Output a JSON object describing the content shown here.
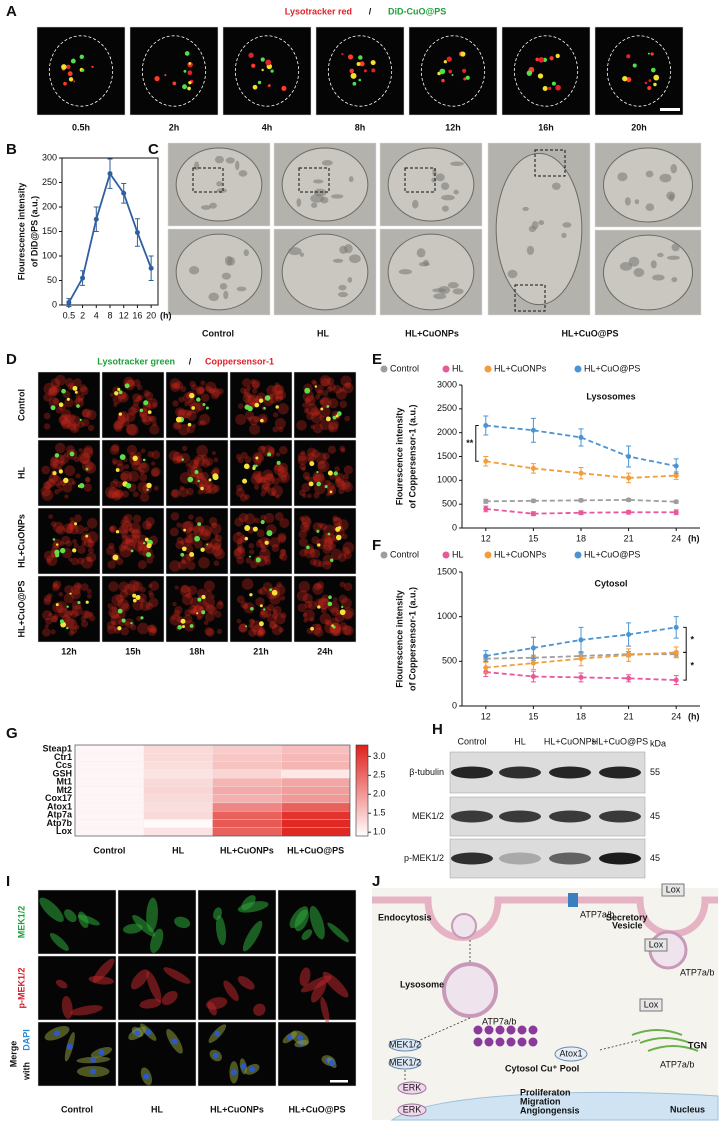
{
  "panel_labels": [
    "A",
    "B",
    "C",
    "D",
    "E",
    "F",
    "G",
    "H",
    "I",
    "J"
  ],
  "panel_a": {
    "title_left": "Lysotracker red",
    "separator": "/",
    "title_right": "DiD-CuO@PS",
    "times": [
      "0.5h",
      "2h",
      "4h",
      "8h",
      "12h",
      "16h",
      "20h"
    ]
  },
  "panel_c": {
    "groups": [
      "Control",
      "HL",
      "HL+CuONPs",
      "HL+CuO@PS"
    ]
  },
  "panel_d": {
    "title_left": "Lysotracker green",
    "separator": "/",
    "title_right": "Coppersensor-1",
    "rows": [
      "Control",
      "HL",
      "HL+CuONPs",
      "HL+CuO@PS"
    ],
    "times": [
      "12h",
      "15h",
      "18h",
      "21h",
      "24h"
    ]
  },
  "panel_h": {
    "columns": [
      "Control",
      "HL",
      "HL+CuONPs",
      "HL+CuO@PS"
    ],
    "rows": [
      "β-tubulin",
      "MEK1/2",
      "p-MEK1/2"
    ],
    "unit": "kDa",
    "sizes": [
      "55",
      "45",
      "45"
    ]
  },
  "panel_i": {
    "rows": [
      "MEK1/2",
      "p-MEK1/2"
    ],
    "merge": [
      "Merge",
      "with",
      "DAPI"
    ],
    "columns": [
      "Control",
      "HL",
      "HL+CuONPs",
      "HL+CuO@PS"
    ]
  },
  "panel_j": {
    "endocytosis": "Endocytosis",
    "atp7ab": "ATP7a/b",
    "lox": "Lox",
    "secretory_vesicle": [
      "Secretory",
      "Vesicle"
    ],
    "lysosome": "Lysosome",
    "mek": "MEK1/2",
    "cytosol_pool": "Cytosol Cu⁺ Pool",
    "atox1": "Atox1",
    "tgn": "TGN",
    "erk": "ERK",
    "outcomes": [
      "Proliferaton",
      "Migration",
      "Angiongensis"
    ],
    "nucleus": "Nucleus"
  },
  "chart_data": [
    {
      "type": "line",
      "ylabel": [
        "Flourescence intensity",
        "of DiD@PS (a.u.)"
      ],
      "x_unit": "(h)",
      "categories": [
        "0.5",
        "2",
        "4",
        "8",
        "12",
        "16",
        "20"
      ],
      "values": [
        5,
        55,
        175,
        268,
        228,
        148,
        75
      ],
      "errors": [
        8,
        15,
        25,
        30,
        20,
        28,
        25
      ],
      "color": "#2f5f9e",
      "line_style": "solid",
      "ylim": [
        0,
        300
      ],
      "yticks": [
        0,
        50,
        100,
        150,
        200,
        250,
        300
      ]
    },
    {
      "type": "line",
      "title": "Lysosomes",
      "ylabel": [
        "Flourescence intensity",
        "of Coppersensor-1 (a.u.)"
      ],
      "x_unit": "(h)",
      "categories": [
        "12",
        "15",
        "18",
        "21",
        "24"
      ],
      "series": [
        {
          "name": "Control",
          "color": "#9e9e9e",
          "values": [
            560,
            570,
            580,
            590,
            550
          ],
          "errors": [
            40,
            30,
            30,
            30,
            30
          ]
        },
        {
          "name": "HL",
          "color": "#e8589a",
          "values": [
            400,
            300,
            320,
            330,
            330
          ],
          "errors": [
            60,
            40,
            40,
            40,
            50
          ]
        },
        {
          "name": "HL+CuONPs",
          "color": "#f39c38",
          "values": [
            1400,
            1250,
            1150,
            1050,
            1100
          ],
          "errors": [
            100,
            100,
            120,
            100,
            80
          ]
        },
        {
          "name": "HL+CuO@PS",
          "color": "#4b94d4",
          "values": [
            2150,
            2050,
            1900,
            1500,
            1300
          ],
          "errors": [
            200,
            250,
            180,
            220,
            150
          ]
        }
      ],
      "annotations": [
        "**"
      ],
      "line_style": "dashed",
      "ylim": [
        0,
        3000
      ],
      "yticks": [
        0,
        500,
        1000,
        1500,
        2000,
        2500,
        3000
      ]
    },
    {
      "type": "line",
      "title": "Cytosol",
      "ylabel": [
        "Flourescence intensity",
        "of Coppersensor-1 (a.u.)"
      ],
      "x_unit": "(h)",
      "categories": [
        "12",
        "15",
        "18",
        "21",
        "24"
      ],
      "series": [
        {
          "name": "Control",
          "color": "#9e9e9e",
          "values": [
            530,
            540,
            560,
            580,
            580
          ],
          "errors": [
            30,
            30,
            30,
            30,
            30
          ]
        },
        {
          "name": "HL",
          "color": "#e8589a",
          "values": [
            380,
            330,
            320,
            310,
            290
          ],
          "errors": [
            50,
            60,
            50,
            40,
            50
          ]
        },
        {
          "name": "HL+CuONPs",
          "color": "#f39c38",
          "values": [
            430,
            480,
            530,
            570,
            600
          ],
          "errors": [
            60,
            70,
            80,
            70,
            60
          ]
        },
        {
          "name": "HL+CuO@PS",
          "color": "#4b94d4",
          "values": [
            560,
            650,
            740,
            800,
            880
          ],
          "errors": [
            60,
            120,
            140,
            130,
            120
          ]
        }
      ],
      "annotations": [
        "*",
        "*"
      ],
      "line_style": "dashed",
      "ylim": [
        0,
        1500
      ],
      "yticks": [
        0,
        500,
        1000,
        1500
      ]
    },
    {
      "type": "heatmap",
      "rows": [
        "Steap1",
        "Ctr1",
        "Ccs",
        "GSH",
        "Mt1",
        "Mt2",
        "Cox17",
        "Atox1",
        "Atp7a",
        "Atp7b",
        "Lox"
      ],
      "columns": [
        "Control",
        "HL",
        "HL+CuONPs",
        "HL+CuO@PS"
      ],
      "values": [
        [
          1,
          1.3,
          1.45,
          1.6
        ],
        [
          1,
          1.3,
          1.5,
          1.65
        ],
        [
          1,
          1.25,
          1.55,
          1.7
        ],
        [
          1,
          1.2,
          1.35,
          1.15
        ],
        [
          1,
          1.3,
          1.7,
          1.85
        ],
        [
          1,
          1.35,
          1.8,
          1.95
        ],
        [
          1,
          1.3,
          1.75,
          2.0
        ],
        [
          1,
          1.25,
          2.2,
          2.6
        ],
        [
          1,
          1.3,
          2.6,
          3.1
        ],
        [
          1,
          0.95,
          2.7,
          3.2
        ],
        [
          1,
          1.2,
          2.6,
          3.2
        ]
      ],
      "low_color": "#ffffff",
      "high_color": "#e0201b",
      "colorbar_lim": [
        0.9,
        3.3
      ],
      "colorbar_ticks": [
        {
          "value": 1,
          "label": "1.0"
        },
        {
          "value": 1.5,
          "label": "1.5"
        },
        {
          "value": 2,
          "label": "2.0"
        },
        {
          "value": 2.5,
          "label": "2.5"
        },
        {
          "value": 3,
          "label": "3.0"
        }
      ]
    }
  ]
}
